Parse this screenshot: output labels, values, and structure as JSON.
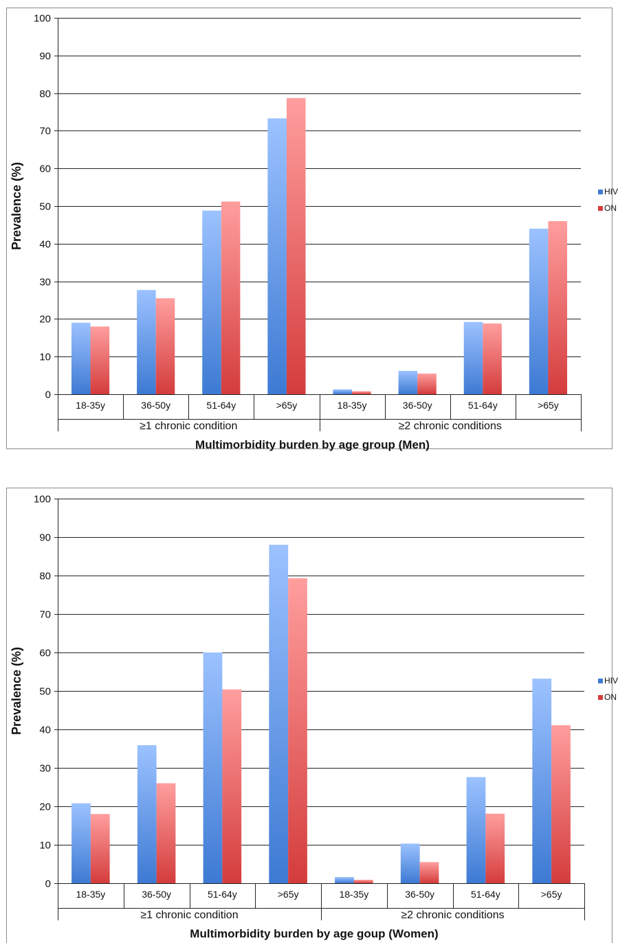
{
  "colors": {
    "hiv_light": "#9cc2ff",
    "hiv_dark": "#3d7ad3",
    "on_light": "#ff9e9e",
    "on_dark": "#d43c3c"
  },
  "chart_data": [
    {
      "type": "bar",
      "panel": "men",
      "xlabel": "Multimorbidity burden by age group (Men)",
      "ylabel": "Prevalence (%)",
      "ylim": [
        0,
        100
      ],
      "yticks": [
        0,
        10,
        20,
        30,
        40,
        50,
        60,
        70,
        80,
        90,
        100
      ],
      "grid": true,
      "legend_position": "right",
      "groups": [
        "≥1 chronic condition",
        "≥2 chronic conditions"
      ],
      "categories": [
        "18-35y",
        "36-50y",
        "51-64y",
        ">65y",
        "18-35y",
        "36-50y",
        "51-64y",
        ">65y"
      ],
      "series": [
        {
          "name": "HIV",
          "values": [
            19,
            27.7,
            48.8,
            73.3,
            1.3,
            6.2,
            19.2,
            44
          ]
        },
        {
          "name": "ON",
          "values": [
            18,
            25.5,
            51.2,
            78.7,
            0.8,
            5.5,
            18.8,
            46
          ]
        }
      ]
    },
    {
      "type": "bar",
      "panel": "women",
      "xlabel": "Multimorbidity burden by age goup (Women)",
      "ylabel": "Prevalence (%)",
      "ylim": [
        0,
        100
      ],
      "yticks": [
        0,
        10,
        20,
        30,
        40,
        50,
        60,
        70,
        80,
        90,
        100
      ],
      "grid": true,
      "legend_position": "right",
      "groups": [
        "≥1 chronic condition",
        "≥2 chronic conditions"
      ],
      "categories": [
        "18-35y",
        "36-50y",
        "51-64y",
        ">65y",
        "18-35y",
        "36-50y",
        "51-64y",
        ">65y"
      ],
      "series": [
        {
          "name": "HIV",
          "values": [
            20.8,
            35.9,
            60,
            88,
            1.6,
            10.3,
            27.6,
            53.2
          ]
        },
        {
          "name": "ON",
          "values": [
            18,
            26,
            50.4,
            79.3,
            0.9,
            5.5,
            18.1,
            41.1
          ]
        }
      ]
    }
  ]
}
